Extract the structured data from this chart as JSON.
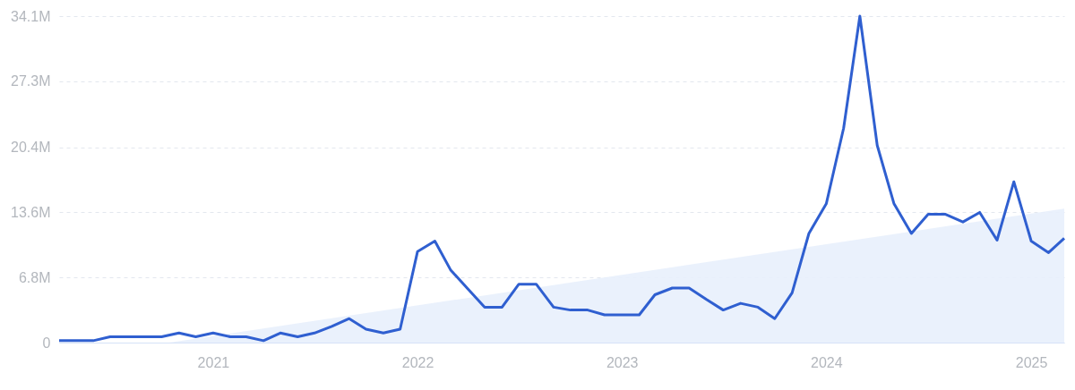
{
  "chart_data": {
    "type": "line",
    "x": [
      "2020-04",
      "2020-05",
      "2020-06",
      "2020-07",
      "2020-08",
      "2020-09",
      "2020-10",
      "2020-11",
      "2020-12",
      "2021-01",
      "2021-02",
      "2021-03",
      "2021-04",
      "2021-05",
      "2021-06",
      "2021-07",
      "2021-08",
      "2021-09",
      "2021-10",
      "2021-11",
      "2021-12",
      "2022-01",
      "2022-02",
      "2022-03",
      "2022-04",
      "2022-05",
      "2022-06",
      "2022-07",
      "2022-08",
      "2022-09",
      "2022-10",
      "2022-11",
      "2022-12",
      "2023-01",
      "2023-02",
      "2023-03",
      "2023-04",
      "2023-05",
      "2023-06",
      "2023-07",
      "2023-08",
      "2023-09",
      "2023-10",
      "2023-11",
      "2023-12",
      "2024-01",
      "2024-02",
      "2024-03",
      "2024-04",
      "2024-05",
      "2024-06",
      "2024-07",
      "2024-08",
      "2024-09",
      "2024-10",
      "2024-11",
      "2024-12",
      "2025-01",
      "2025-02",
      "2025-03"
    ],
    "xlim": [
      "2020-04",
      "2025-03"
    ],
    "xticks": [
      "2021",
      "2022",
      "2023",
      "2024",
      "2025"
    ],
    "ylim": [
      0,
      34.1
    ],
    "yticks": [
      {
        "value": 0,
        "label": "0"
      },
      {
        "value": 6.8,
        "label": "6.8M"
      },
      {
        "value": 13.6,
        "label": "13.6M"
      },
      {
        "value": 20.4,
        "label": "20.4M"
      },
      {
        "value": 27.3,
        "label": "27.3M"
      },
      {
        "value": 34.1,
        "label": "34.1M"
      }
    ],
    "grid": "y",
    "series": [
      {
        "type": "area",
        "color": "#e8f0fc",
        "x": [
          "2020-10-15",
          "2025-03"
        ],
        "values": [
          0,
          14.0
        ]
      },
      {
        "color": "#2f5fd0",
        "values": [
          0.2,
          0.2,
          0.2,
          0.6,
          0.6,
          0.6,
          0.6,
          1.0,
          0.6,
          1.0,
          0.6,
          0.6,
          0.2,
          1.0,
          0.6,
          1.0,
          1.7,
          2.5,
          1.4,
          1.0,
          1.4,
          9.5,
          10.6,
          7.6,
          5.6,
          3.7,
          3.7,
          6.1,
          6.1,
          3.7,
          3.4,
          3.4,
          2.9,
          2.9,
          2.9,
          5.0,
          5.7,
          5.7,
          4.5,
          3.4,
          4.1,
          3.7,
          2.5,
          5.2,
          11.4,
          14.5,
          22.4,
          34.1,
          20.6,
          14.5,
          11.4,
          13.4,
          13.4,
          12.6,
          13.6,
          10.7,
          16.8,
          10.6,
          9.4,
          10.9
        ]
      }
    ]
  }
}
